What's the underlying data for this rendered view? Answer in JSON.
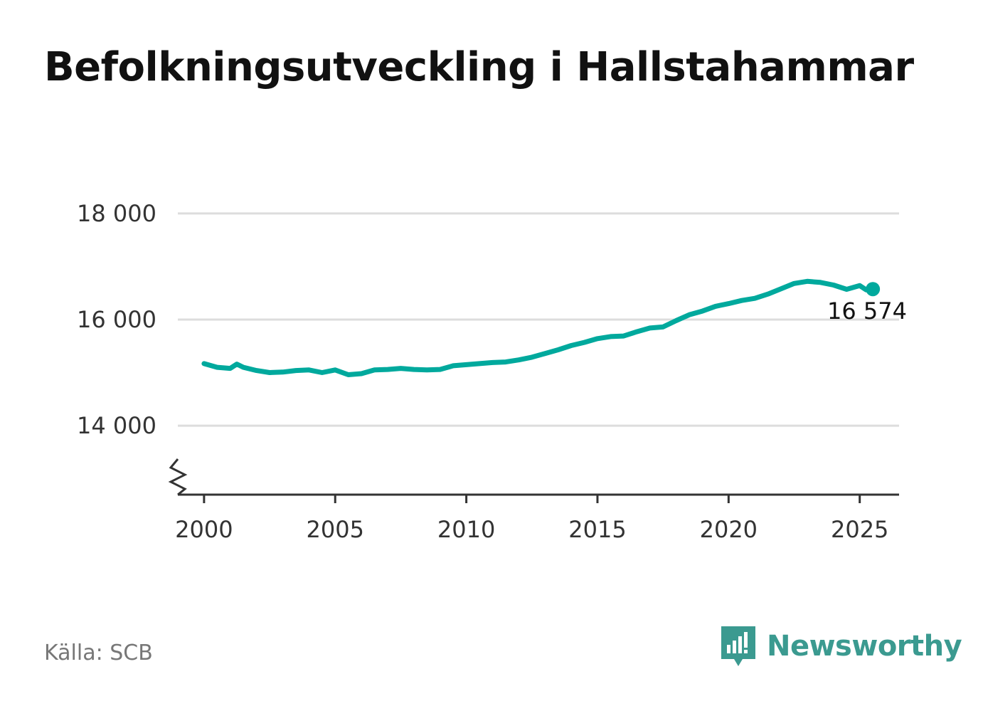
{
  "title": "Befolkningsutveckling i Hallstahammar",
  "source": "Källa: SCB",
  "brand": {
    "name": "Newsworthy",
    "icon": "newsworthy-logo-icon",
    "color": "#3b9a90"
  },
  "colors": {
    "line": "#00a99d",
    "grid": "#dddddd",
    "axis": "#333333"
  },
  "chart_data": {
    "type": "line",
    "title": "Befolkningsutveckling i Hallstahammar",
    "xlabel": "",
    "ylabel": "",
    "xlim": [
      1999,
      2026.5
    ],
    "ylim": [
      12700,
      18200
    ],
    "y_axis_break": true,
    "grid": "horizontal",
    "x_ticks": [
      2000,
      2005,
      2010,
      2015,
      2020,
      2025
    ],
    "x_tick_labels": [
      "2000",
      "2005",
      "2010",
      "2015",
      "2020",
      "2025"
    ],
    "y_ticks": [
      14000,
      16000,
      18000
    ],
    "y_tick_labels": [
      "14 000",
      "16 000",
      "18 000"
    ],
    "end_label": "16 574",
    "series": [
      {
        "x": [
          2000.0,
          2000.5,
          2001.0,
          2001.25,
          2001.5,
          2002.0,
          2002.5,
          2003.0,
          2003.5,
          2004.0,
          2004.5,
          2005.0,
          2005.5,
          2006.0,
          2006.5,
          2007.0,
          2007.5,
          2008.0,
          2008.5,
          2009.0,
          2009.5,
          2010.0,
          2010.5,
          2011.0,
          2011.5,
          2012.0,
          2012.5,
          2013.0,
          2013.5,
          2014.0,
          2014.5,
          2015.0,
          2015.5,
          2016.0,
          2016.5,
          2017.0,
          2017.5,
          2018.0,
          2018.5,
          2019.0,
          2019.5,
          2020.0,
          2020.5,
          2021.0,
          2021.5,
          2022.0,
          2022.5,
          2023.0,
          2023.5,
          2024.0,
          2024.5,
          2025.0,
          2025.25,
          2025.5
        ],
        "values": [
          15170,
          15100,
          15080,
          15160,
          15100,
          15040,
          15000,
          15010,
          15040,
          15050,
          15000,
          15050,
          14960,
          14980,
          15050,
          15060,
          15080,
          15060,
          15050,
          15060,
          15130,
          15150,
          15170,
          15190,
          15200,
          15240,
          15290,
          15360,
          15430,
          15510,
          15570,
          15640,
          15680,
          15690,
          15770,
          15840,
          15860,
          15980,
          16090,
          16160,
          16250,
          16300,
          16360,
          16400,
          16480,
          16580,
          16680,
          16720,
          16700,
          16650,
          16570,
          16640,
          16560,
          16574
        ]
      }
    ]
  }
}
